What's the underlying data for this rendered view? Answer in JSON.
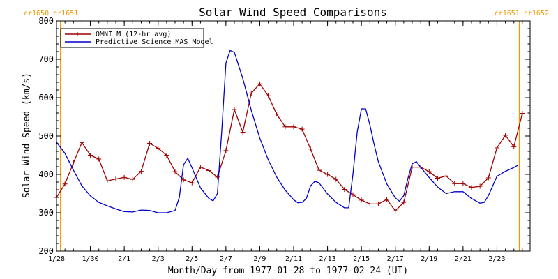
{
  "chart_data": {
    "type": "line",
    "title": "Solar Wind Speed Comparisons",
    "xlabel": "Month/Day from 1977-01-28 to 1977-02-24 (UT)",
    "ylabel": "Solar Wind Speed (km/s)",
    "xlim": [
      "1977-01-28",
      "1977-02-24T23:00"
    ],
    "ylim": [
      200,
      800
    ],
    "grid": false,
    "legend_position": "top-left",
    "carrington_labels": [
      {
        "text": "cr1650  cr1651",
        "date": "1977-01-28T06:00",
        "align": "left"
      },
      {
        "text": "cr1651  cr1652",
        "date": "1977-02-24T08:00",
        "align": "right"
      }
    ],
    "carrington_markers": [
      "1977-01-28T06:00",
      "1977-02-24T08:00"
    ],
    "x_ticks": [
      {
        "date": "1977-01-28",
        "label": "1/28"
      },
      {
        "date": "1977-01-30",
        "label": "1/30"
      },
      {
        "date": "1977-02-01",
        "label": "2/1"
      },
      {
        "date": "1977-02-03",
        "label": "2/3"
      },
      {
        "date": "1977-02-05",
        "label": "2/5"
      },
      {
        "date": "1977-02-07",
        "label": "2/7"
      },
      {
        "date": "1977-02-09",
        "label": "2/9"
      },
      {
        "date": "1977-02-11",
        "label": "2/11"
      },
      {
        "date": "1977-02-13",
        "label": "2/13"
      },
      {
        "date": "1977-02-15",
        "label": "2/15"
      },
      {
        "date": "1977-02-17",
        "label": "2/17"
      },
      {
        "date": "1977-02-19",
        "label": "2/19"
      },
      {
        "date": "1977-02-21",
        "label": "2/21"
      },
      {
        "date": "1977-02-23",
        "label": "2/23"
      }
    ],
    "y_ticks": [
      200,
      300,
      400,
      500,
      600,
      700,
      800
    ],
    "colors": {
      "omni": "#a00000",
      "mas": "#0000cc",
      "carrington": "#ee9900",
      "axis": "#000000"
    },
    "series": [
      {
        "name": "OMNI_M (12-hr avg)",
        "color": "#a00000",
        "markers": "plus",
        "points": [
          [
            "1977-01-28T00:00",
            340
          ],
          [
            "1977-01-28T12:00",
            375
          ],
          [
            "1977-01-29T00:00",
            430
          ],
          [
            "1977-01-29T12:00",
            483
          ],
          [
            "1977-01-30T00:00",
            450
          ],
          [
            "1977-01-30T12:00",
            440
          ],
          [
            "1977-01-31T00:00",
            383
          ],
          [
            "1977-01-31T12:00",
            388
          ],
          [
            "1977-02-01T00:00",
            392
          ],
          [
            "1977-02-01T12:00",
            387
          ],
          [
            "1977-02-02T00:00",
            408
          ],
          [
            "1977-02-02T12:00",
            481
          ],
          [
            "1977-02-03T00:00",
            468
          ],
          [
            "1977-02-03T12:00",
            450
          ],
          [
            "1977-02-04T00:00",
            407
          ],
          [
            "1977-02-04T12:00",
            386
          ],
          [
            "1977-02-05T00:00",
            378
          ],
          [
            "1977-02-05T12:00",
            419
          ],
          [
            "1977-02-06T00:00",
            410
          ],
          [
            "1977-02-06T12:00",
            393
          ],
          [
            "1977-02-07T00:00",
            462
          ],
          [
            "1977-02-07T12:00",
            569
          ],
          [
            "1977-02-08T00:00",
            510
          ],
          [
            "1977-02-08T12:00",
            612
          ],
          [
            "1977-02-09T00:00",
            636
          ],
          [
            "1977-02-09T12:00",
            605
          ],
          [
            "1977-02-10T00:00",
            557
          ],
          [
            "1977-02-10T12:00",
            524
          ],
          [
            "1977-02-11T00:00",
            524
          ],
          [
            "1977-02-11T12:00",
            518
          ],
          [
            "1977-02-12T00:00",
            466
          ],
          [
            "1977-02-12T12:00",
            411
          ],
          [
            "1977-02-13T00:00",
            400
          ],
          [
            "1977-02-13T12:00",
            387
          ],
          [
            "1977-02-14T00:00",
            361
          ],
          [
            "1977-02-14T12:00",
            347
          ],
          [
            "1977-02-15T00:00",
            333
          ],
          [
            "1977-02-15T12:00",
            323
          ],
          [
            "1977-02-16T00:00",
            323
          ],
          [
            "1977-02-16T12:00",
            335
          ],
          [
            "1977-02-17T00:00",
            305
          ],
          [
            "1977-02-17T12:00",
            327
          ],
          [
            "1977-02-18T00:00",
            419
          ],
          [
            "1977-02-18T12:00",
            419
          ],
          [
            "1977-02-19T00:00",
            407
          ],
          [
            "1977-02-19T12:00",
            390
          ],
          [
            "1977-02-20T00:00",
            396
          ],
          [
            "1977-02-20T12:00",
            376
          ],
          [
            "1977-02-21T00:00",
            376
          ],
          [
            "1977-02-21T12:00",
            366
          ],
          [
            "1977-02-22T00:00",
            369
          ],
          [
            "1977-02-22T12:00",
            391
          ],
          [
            "1977-02-23T00:00",
            469
          ],
          [
            "1977-02-23T12:00",
            502
          ],
          [
            "1977-02-24T00:00",
            472
          ],
          [
            "1977-02-24T12:00",
            559
          ]
        ]
      },
      {
        "name": "Predictive Science MAS Model",
        "color": "#0000cc",
        "markers": "none",
        "points": [
          [
            "1977-01-28T00:00",
            484
          ],
          [
            "1977-01-28T12:00",
            455
          ],
          [
            "1977-01-29T00:00",
            411
          ],
          [
            "1977-01-29T12:00",
            370
          ],
          [
            "1977-01-30T00:00",
            344
          ],
          [
            "1977-01-30T12:00",
            327
          ],
          [
            "1977-01-31T00:00",
            318
          ],
          [
            "1977-01-31T12:00",
            310
          ],
          [
            "1977-02-01T00:00",
            303
          ],
          [
            "1977-02-01T12:00",
            302
          ],
          [
            "1977-02-02T00:00",
            307
          ],
          [
            "1977-02-02T12:00",
            306
          ],
          [
            "1977-02-03T00:00",
            300
          ],
          [
            "1977-02-03T12:00",
            300
          ],
          [
            "1977-02-04T00:00",
            306
          ],
          [
            "1977-02-04T06:00",
            340
          ],
          [
            "1977-02-04T12:00",
            425
          ],
          [
            "1977-02-04T18:00",
            442
          ],
          [
            "1977-02-05T00:00",
            417
          ],
          [
            "1977-02-05T12:00",
            365
          ],
          [
            "1977-02-06T00:00",
            337
          ],
          [
            "1977-02-06T06:00",
            331
          ],
          [
            "1977-02-06T12:00",
            350
          ],
          [
            "1977-02-06T18:00",
            510
          ],
          [
            "1977-02-07T00:00",
            690
          ],
          [
            "1977-02-07T06:00",
            723
          ],
          [
            "1977-02-07T12:00",
            718
          ],
          [
            "1977-02-08T00:00",
            650
          ],
          [
            "1977-02-08T12:00",
            567
          ],
          [
            "1977-02-09T00:00",
            495
          ],
          [
            "1977-02-09T12:00",
            438
          ],
          [
            "1977-02-10T00:00",
            393
          ],
          [
            "1977-02-10T12:00",
            359
          ],
          [
            "1977-02-11T00:00",
            334
          ],
          [
            "1977-02-11T06:00",
            326
          ],
          [
            "1977-02-11T12:00",
            327
          ],
          [
            "1977-02-11T18:00",
            337
          ],
          [
            "1977-02-12T00:00",
            370
          ],
          [
            "1977-02-12T06:00",
            382
          ],
          [
            "1977-02-12T12:00",
            378
          ],
          [
            "1977-02-13T00:00",
            349
          ],
          [
            "1977-02-13T12:00",
            327
          ],
          [
            "1977-02-14T00:00",
            313
          ],
          [
            "1977-02-14T06:00",
            313
          ],
          [
            "1977-02-14T12:00",
            400
          ],
          [
            "1977-02-14T18:00",
            510
          ],
          [
            "1977-02-15T00:00",
            571
          ],
          [
            "1977-02-15T06:00",
            571
          ],
          [
            "1977-02-15T12:00",
            529
          ],
          [
            "1977-02-15T18:00",
            478
          ],
          [
            "1977-02-16T00:00",
            433
          ],
          [
            "1977-02-16T12:00",
            375
          ],
          [
            "1977-02-17T00:00",
            339
          ],
          [
            "1977-02-17T06:00",
            330
          ],
          [
            "1977-02-17T12:00",
            345
          ],
          [
            "1977-02-17T18:00",
            390
          ],
          [
            "1977-02-18T00:00",
            428
          ],
          [
            "1977-02-18T06:00",
            433
          ],
          [
            "1977-02-18T12:00",
            418
          ],
          [
            "1977-02-19T00:00",
            392
          ],
          [
            "1977-02-19T12:00",
            367
          ],
          [
            "1977-02-20T00:00",
            350
          ],
          [
            "1977-02-20T12:00",
            355
          ],
          [
            "1977-02-21T00:00",
            355
          ],
          [
            "1977-02-21T12:00",
            337
          ],
          [
            "1977-02-22T00:00",
            325
          ],
          [
            "1977-02-22T06:00",
            327
          ],
          [
            "1977-02-22T12:00",
            345
          ],
          [
            "1977-02-23T00:00",
            395
          ],
          [
            "1977-02-23T12:00",
            408
          ],
          [
            "1977-02-24T00:00",
            418
          ],
          [
            "1977-02-24T06:00",
            424
          ]
        ]
      }
    ]
  }
}
